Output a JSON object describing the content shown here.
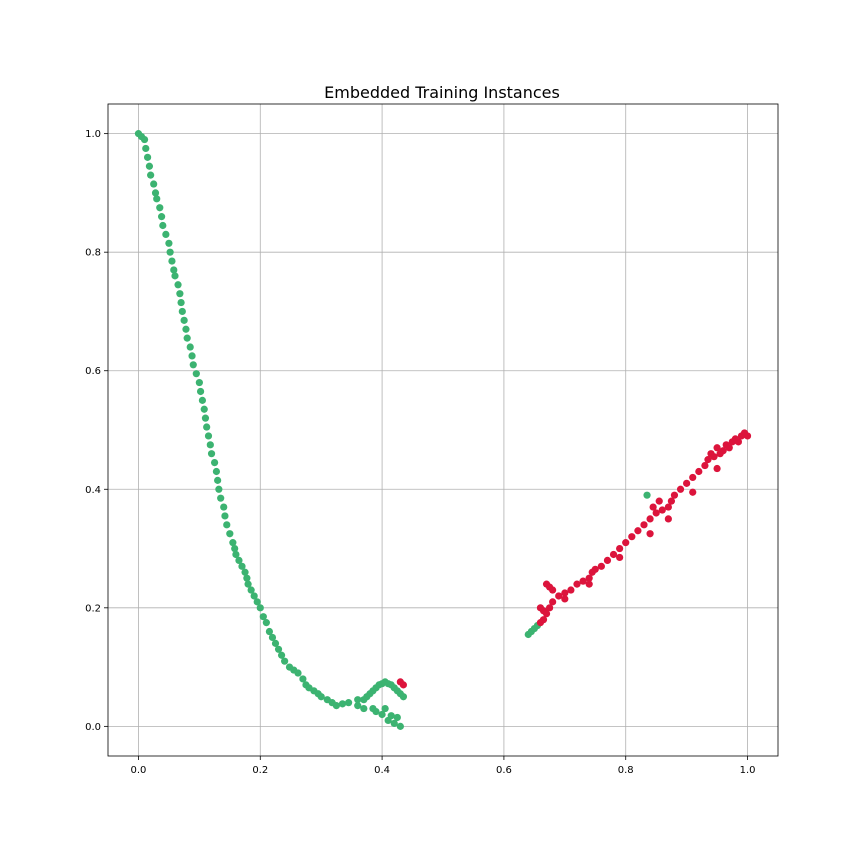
{
  "chart_data": {
    "type": "scatter",
    "title": "Embedded Training Instances",
    "xlabel": "",
    "ylabel": "",
    "xlim": [
      -0.05,
      1.05
    ],
    "ylim": [
      -0.05,
      1.05
    ],
    "xticks": [
      "0.0",
      "0.2",
      "0.4",
      "0.6",
      "0.8",
      "1.0"
    ],
    "yticks": [
      "0.0",
      "0.2",
      "0.4",
      "0.6",
      "0.8",
      "1.0"
    ],
    "grid": true,
    "legend": "none",
    "series": [
      {
        "color": "#3cb371",
        "points": [
          [
            0.0,
            1.0
          ],
          [
            0.005,
            0.995
          ],
          [
            0.01,
            0.99
          ],
          [
            0.012,
            0.975
          ],
          [
            0.015,
            0.96
          ],
          [
            0.018,
            0.945
          ],
          [
            0.02,
            0.93
          ],
          [
            0.025,
            0.915
          ],
          [
            0.028,
            0.9
          ],
          [
            0.03,
            0.89
          ],
          [
            0.035,
            0.875
          ],
          [
            0.038,
            0.86
          ],
          [
            0.04,
            0.845
          ],
          [
            0.045,
            0.83
          ],
          [
            0.05,
            0.815
          ],
          [
            0.052,
            0.8
          ],
          [
            0.055,
            0.785
          ],
          [
            0.058,
            0.77
          ],
          [
            0.06,
            0.76
          ],
          [
            0.065,
            0.745
          ],
          [
            0.068,
            0.73
          ],
          [
            0.07,
            0.715
          ],
          [
            0.072,
            0.7
          ],
          [
            0.075,
            0.685
          ],
          [
            0.078,
            0.67
          ],
          [
            0.08,
            0.655
          ],
          [
            0.085,
            0.64
          ],
          [
            0.088,
            0.625
          ],
          [
            0.09,
            0.61
          ],
          [
            0.095,
            0.595
          ],
          [
            0.1,
            0.58
          ],
          [
            0.102,
            0.565
          ],
          [
            0.105,
            0.55
          ],
          [
            0.108,
            0.535
          ],
          [
            0.11,
            0.52
          ],
          [
            0.112,
            0.505
          ],
          [
            0.115,
            0.49
          ],
          [
            0.118,
            0.475
          ],
          [
            0.12,
            0.46
          ],
          [
            0.125,
            0.445
          ],
          [
            0.128,
            0.43
          ],
          [
            0.13,
            0.415
          ],
          [
            0.132,
            0.4
          ],
          [
            0.135,
            0.385
          ],
          [
            0.14,
            0.37
          ],
          [
            0.142,
            0.355
          ],
          [
            0.145,
            0.34
          ],
          [
            0.15,
            0.325
          ],
          [
            0.155,
            0.31
          ],
          [
            0.158,
            0.3
          ],
          [
            0.16,
            0.29
          ],
          [
            0.165,
            0.28
          ],
          [
            0.17,
            0.27
          ],
          [
            0.175,
            0.26
          ],
          [
            0.178,
            0.25
          ],
          [
            0.18,
            0.24
          ],
          [
            0.185,
            0.23
          ],
          [
            0.19,
            0.22
          ],
          [
            0.195,
            0.21
          ],
          [
            0.2,
            0.2
          ],
          [
            0.205,
            0.185
          ],
          [
            0.21,
            0.175
          ],
          [
            0.215,
            0.16
          ],
          [
            0.22,
            0.15
          ],
          [
            0.225,
            0.14
          ],
          [
            0.23,
            0.13
          ],
          [
            0.235,
            0.12
          ],
          [
            0.24,
            0.11
          ],
          [
            0.248,
            0.1
          ],
          [
            0.255,
            0.095
          ],
          [
            0.262,
            0.09
          ],
          [
            0.27,
            0.08
          ],
          [
            0.275,
            0.07
          ],
          [
            0.28,
            0.065
          ],
          [
            0.288,
            0.06
          ],
          [
            0.295,
            0.055
          ],
          [
            0.3,
            0.05
          ],
          [
            0.31,
            0.045
          ],
          [
            0.318,
            0.04
          ],
          [
            0.325,
            0.035
          ],
          [
            0.335,
            0.038
          ],
          [
            0.345,
            0.04
          ],
          [
            0.36,
            0.035
          ],
          [
            0.37,
            0.045
          ],
          [
            0.375,
            0.05
          ],
          [
            0.38,
            0.055
          ],
          [
            0.385,
            0.06
          ],
          [
            0.39,
            0.065
          ],
          [
            0.395,
            0.07
          ],
          [
            0.4,
            0.072
          ],
          [
            0.405,
            0.075
          ],
          [
            0.41,
            0.072
          ],
          [
            0.415,
            0.07
          ],
          [
            0.42,
            0.065
          ],
          [
            0.425,
            0.06
          ],
          [
            0.43,
            0.055
          ],
          [
            0.435,
            0.05
          ],
          [
            0.39,
            0.025
          ],
          [
            0.4,
            0.02
          ],
          [
            0.41,
            0.01
          ],
          [
            0.42,
            0.005
          ],
          [
            0.43,
            0.0
          ],
          [
            0.385,
            0.03
          ],
          [
            0.405,
            0.03
          ],
          [
            0.415,
            0.018
          ],
          [
            0.425,
            0.015
          ],
          [
            0.37,
            0.03
          ],
          [
            0.36,
            0.045
          ],
          [
            0.64,
            0.155
          ],
          [
            0.645,
            0.16
          ],
          [
            0.65,
            0.165
          ],
          [
            0.655,
            0.17
          ],
          [
            0.835,
            0.39
          ]
        ]
      },
      {
        "color": "#dc143c",
        "points": [
          [
            0.43,
            0.075
          ],
          [
            0.435,
            0.07
          ],
          [
            0.66,
            0.175
          ],
          [
            0.665,
            0.18
          ],
          [
            0.67,
            0.19
          ],
          [
            0.675,
            0.2
          ],
          [
            0.68,
            0.21
          ],
          [
            0.67,
            0.24
          ],
          [
            0.675,
            0.235
          ],
          [
            0.68,
            0.23
          ],
          [
            0.69,
            0.22
          ],
          [
            0.7,
            0.225
          ],
          [
            0.71,
            0.23
          ],
          [
            0.72,
            0.24
          ],
          [
            0.73,
            0.245
          ],
          [
            0.74,
            0.25
          ],
          [
            0.745,
            0.26
          ],
          [
            0.75,
            0.265
          ],
          [
            0.76,
            0.27
          ],
          [
            0.77,
            0.28
          ],
          [
            0.78,
            0.29
          ],
          [
            0.79,
            0.3
          ],
          [
            0.8,
            0.31
          ],
          [
            0.81,
            0.32
          ],
          [
            0.82,
            0.33
          ],
          [
            0.83,
            0.34
          ],
          [
            0.84,
            0.35
          ],
          [
            0.845,
            0.37
          ],
          [
            0.85,
            0.36
          ],
          [
            0.855,
            0.38
          ],
          [
            0.86,
            0.365
          ],
          [
            0.87,
            0.37
          ],
          [
            0.875,
            0.38
          ],
          [
            0.88,
            0.39
          ],
          [
            0.89,
            0.4
          ],
          [
            0.9,
            0.41
          ],
          [
            0.91,
            0.42
          ],
          [
            0.92,
            0.43
          ],
          [
            0.93,
            0.44
          ],
          [
            0.935,
            0.45
          ],
          [
            0.94,
            0.46
          ],
          [
            0.945,
            0.455
          ],
          [
            0.95,
            0.47
          ],
          [
            0.955,
            0.46
          ],
          [
            0.96,
            0.465
          ],
          [
            0.965,
            0.475
          ],
          [
            0.97,
            0.47
          ],
          [
            0.975,
            0.48
          ],
          [
            0.98,
            0.485
          ],
          [
            0.99,
            0.49
          ],
          [
            1.0,
            0.49
          ],
          [
            0.995,
            0.495
          ],
          [
            0.985,
            0.48
          ],
          [
            0.95,
            0.435
          ],
          [
            0.91,
            0.395
          ],
          [
            0.87,
            0.35
          ],
          [
            0.84,
            0.325
          ],
          [
            0.79,
            0.285
          ],
          [
            0.74,
            0.24
          ],
          [
            0.7,
            0.215
          ],
          [
            0.665,
            0.195
          ],
          [
            0.66,
            0.2
          ]
        ]
      }
    ]
  }
}
